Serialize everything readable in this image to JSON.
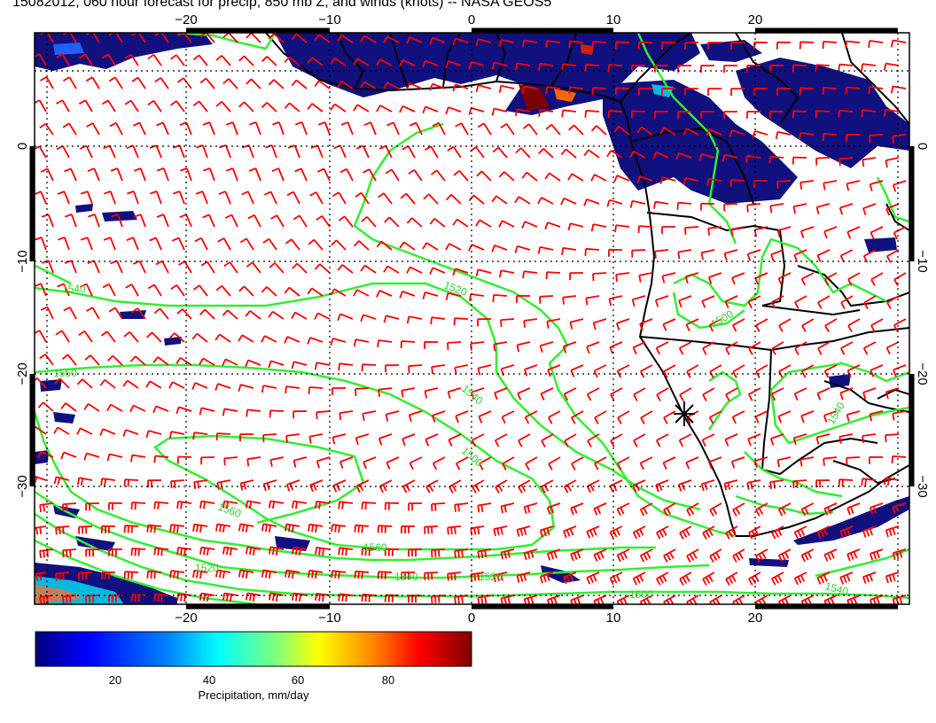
{
  "title": "15082012, 060 hour forecast for precip, 850 mb Z, and winds (knots) -- NASA GEOS5",
  "map": {
    "lon_ticks": [
      {
        "value": -20,
        "label": "−20"
      },
      {
        "value": -10,
        "label": "−10"
      },
      {
        "value": 0,
        "label": "0"
      },
      {
        "value": 10,
        "label": "10"
      },
      {
        "value": 20,
        "label": "20"
      }
    ],
    "lat_ticks": [
      {
        "value": 0,
        "label": "0"
      },
      {
        "value": -10,
        "label": "−10"
      },
      {
        "value": -20,
        "label": "−20"
      },
      {
        "value": -30,
        "label": "−30"
      }
    ],
    "contour_labels": [
      "1540",
      "1520",
      "1500",
      "1560",
      "1580"
    ],
    "colors": {
      "contour": "#33ee33",
      "wind_barb": "#ff0000",
      "coast": "#000000",
      "precip_low": "#0a0a7a"
    }
  },
  "colorbar": {
    "ticks": [
      "20",
      "40",
      "60",
      "80"
    ],
    "label": "Precipitation, mm/day",
    "colors": [
      "#00007f",
      "#0000ff",
      "#007fff",
      "#00ffff",
      "#7fff7f",
      "#ffff00",
      "#ff7f00",
      "#ff0000",
      "#7f0000"
    ]
  }
}
